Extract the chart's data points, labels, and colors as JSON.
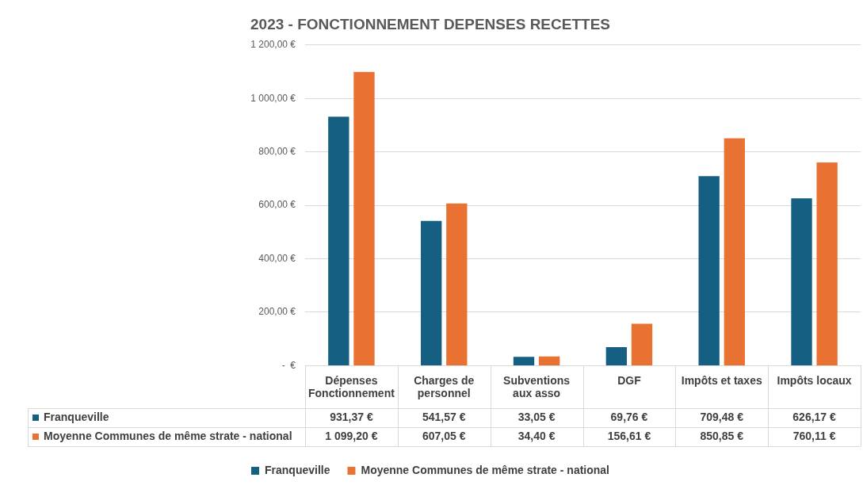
{
  "chart_data": {
    "type": "bar",
    "title": "2023 - FONCTIONNEMENT DEPENSES RECETTES",
    "categories": [
      "Dépenses Fonctionnement",
      "Charges de personnel",
      "Subventions aux asso",
      "DGF",
      "Impôts et taxes",
      "Impôts locaux"
    ],
    "series": [
      {
        "name": "Franqueville",
        "color": "#156082",
        "values": [
          931.37,
          541.57,
          33.05,
          69.76,
          709.48,
          626.17
        ],
        "value_labels": [
          "931,37 €",
          "541,57 €",
          "33,05 €",
          "69,76 €",
          "709,48 €",
          "626,17 €"
        ]
      },
      {
        "name": "Moyenne Communes de même strate - national",
        "color": "#e97132",
        "values": [
          1099.2,
          607.05,
          34.4,
          156.61,
          850.85,
          760.11
        ],
        "value_labels": [
          "1 099,20 €",
          "607,05 €",
          "34,40 €",
          "156,61 €",
          "850,85 €",
          "760,11 €"
        ]
      }
    ],
    "ylim": [
      0,
      1200
    ],
    "yticks": [
      {
        "value": 0,
        "label": "-  €"
      },
      {
        "value": 200,
        "label": "200,00 €"
      },
      {
        "value": 400,
        "label": "400,00 €"
      },
      {
        "value": 600,
        "label": "600,00 €"
      },
      {
        "value": 800,
        "label": "800,00 €"
      },
      {
        "value": 1000,
        "label": "1 000,00 €"
      },
      {
        "value": 1200,
        "label": "1 200,00 €"
      }
    ],
    "grid": "y",
    "legend": "bottom"
  }
}
